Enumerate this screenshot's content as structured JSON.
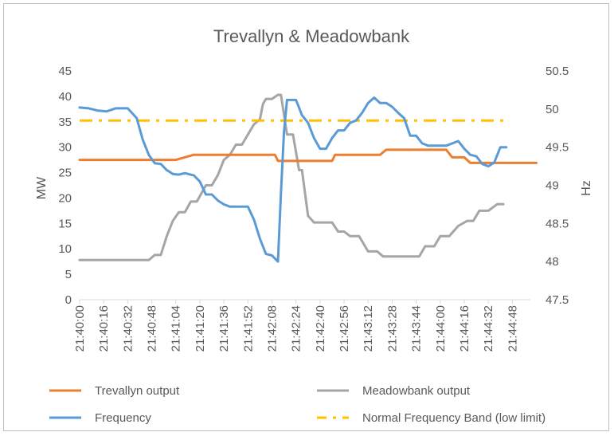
{
  "chart_data": {
    "type": "line",
    "title": "Trevallyn & Meadowbank",
    "ylabel": "MW",
    "y2label": "Hz",
    "ylim": [
      0,
      45
    ],
    "y2lim": [
      47.5,
      50.5
    ],
    "y_ticks": [
      "0",
      "5",
      "10",
      "15",
      "20",
      "25",
      "30",
      "35",
      "40",
      "45"
    ],
    "y2_ticks": [
      "47.5",
      "48",
      "48.5",
      "49",
      "49.5",
      "50",
      "50.5"
    ],
    "x_tick_labels": [
      "21:40:00",
      "21:40:16",
      "21:40:32",
      "21:40:48",
      "21:41:04",
      "21:41:20",
      "21:41:36",
      "21:41:52",
      "21:42:08",
      "21:42:24",
      "21:42:40",
      "21:42:56",
      "21:43:12",
      "21:43:28",
      "21:43:44",
      "21:44:00",
      "21:44:16",
      "21:44:32",
      "21:44:48"
    ],
    "x_seconds_per_step": 4,
    "x_count": 76,
    "grid": false,
    "legend_position": "bottom",
    "series": [
      {
        "name": "Trevallyn output",
        "axis": "left",
        "color": "#ED7D31",
        "points": [
          [
            0,
            27.5
          ],
          [
            32,
            27.5
          ],
          [
            38,
            28.5
          ],
          [
            65,
            28.5
          ],
          [
            66,
            27.3
          ],
          [
            84,
            27.3
          ],
          [
            85,
            28.5
          ],
          [
            100,
            28.5
          ],
          [
            102,
            29.5
          ],
          [
            122,
            29.5
          ],
          [
            124,
            28
          ],
          [
            128,
            28
          ],
          [
            130,
            26.9
          ],
          [
            152,
            26.9
          ]
        ]
      },
      {
        "name": "Meadowbank output",
        "axis": "left",
        "color": "#A5A5A5",
        "points": [
          [
            0,
            7.8
          ],
          [
            23,
            7.8
          ],
          [
            25,
            8.8
          ],
          [
            27,
            8.8
          ],
          [
            29,
            12.5
          ],
          [
            31,
            15.5
          ],
          [
            33,
            17.2
          ],
          [
            35,
            17.2
          ],
          [
            37,
            19.3
          ],
          [
            39,
            19.3
          ],
          [
            42,
            22.5
          ],
          [
            44,
            22.5
          ],
          [
            46,
            24.5
          ],
          [
            48,
            27.5
          ],
          [
            50,
            28.5
          ],
          [
            52,
            30.5
          ],
          [
            54,
            30.5
          ],
          [
            56,
            32.5
          ],
          [
            58,
            34.5
          ],
          [
            60,
            35.5
          ],
          [
            61,
            38.5
          ],
          [
            62,
            39.5
          ],
          [
            64,
            39.5
          ],
          [
            66,
            40.3
          ],
          [
            67,
            40.3
          ],
          [
            69,
            32.5
          ],
          [
            71,
            32.5
          ],
          [
            73,
            25.5
          ],
          [
            74,
            25.5
          ],
          [
            76,
            16.5
          ],
          [
            78,
            15.2
          ],
          [
            84,
            15.2
          ],
          [
            86,
            13.4
          ],
          [
            88,
            13.4
          ],
          [
            90,
            12.5
          ],
          [
            93,
            12.5
          ],
          [
            96,
            9.5
          ],
          [
            99,
            9.5
          ],
          [
            101,
            8.5
          ],
          [
            113,
            8.5
          ],
          [
            115,
            10.5
          ],
          [
            118,
            10.5
          ],
          [
            120,
            12.5
          ],
          [
            123,
            12.5
          ],
          [
            126,
            14.5
          ],
          [
            129,
            15.5
          ],
          [
            131,
            15.5
          ],
          [
            133,
            17.5
          ],
          [
            136,
            17.5
          ],
          [
            139,
            18.8
          ],
          [
            141,
            18.8
          ]
        ]
      },
      {
        "name": "Frequency",
        "axis": "right",
        "color": "#5B9BD5",
        "points": [
          [
            0,
            50.02
          ],
          [
            3,
            50.01
          ],
          [
            6,
            49.98
          ],
          [
            9,
            49.97
          ],
          [
            12,
            50.01
          ],
          [
            16,
            50.01
          ],
          [
            19,
            49.88
          ],
          [
            21,
            49.6
          ],
          [
            23,
            49.4
          ],
          [
            25,
            49.29
          ],
          [
            27,
            49.28
          ],
          [
            29,
            49.2
          ],
          [
            31,
            49.15
          ],
          [
            33,
            49.14
          ],
          [
            35,
            49.16
          ],
          [
            38,
            49.13
          ],
          [
            40,
            49.05
          ],
          [
            42,
            48.88
          ],
          [
            44,
            48.88
          ],
          [
            46,
            48.8
          ],
          [
            48,
            48.75
          ],
          [
            50,
            48.72
          ],
          [
            56,
            48.72
          ],
          [
            58,
            48.55
          ],
          [
            60,
            48.3
          ],
          [
            62,
            48.1
          ],
          [
            64,
            48.08
          ],
          [
            66,
            48.0
          ],
          [
            67,
            48.9
          ],
          [
            68,
            49.7
          ],
          [
            69,
            50.12
          ],
          [
            70,
            50.12
          ],
          [
            72,
            50.12
          ],
          [
            74,
            49.92
          ],
          [
            76,
            49.82
          ],
          [
            78,
            49.62
          ],
          [
            80,
            49.48
          ],
          [
            82,
            49.48
          ],
          [
            84,
            49.62
          ],
          [
            86,
            49.72
          ],
          [
            88,
            49.72
          ],
          [
            90,
            49.82
          ],
          [
            92,
            49.85
          ],
          [
            94,
            49.95
          ],
          [
            96,
            50.08
          ],
          [
            98,
            50.15
          ],
          [
            100,
            50.08
          ],
          [
            102,
            50.08
          ],
          [
            104,
            50.03
          ],
          [
            106,
            49.95
          ],
          [
            108,
            49.88
          ],
          [
            110,
            49.65
          ],
          [
            112,
            49.65
          ],
          [
            114,
            49.55
          ],
          [
            116,
            49.52
          ],
          [
            118,
            49.52
          ],
          [
            120,
            49.52
          ],
          [
            122,
            49.52
          ],
          [
            124,
            49.55
          ],
          [
            126,
            49.58
          ],
          [
            128,
            49.48
          ],
          [
            130,
            49.4
          ],
          [
            132,
            49.38
          ],
          [
            134,
            49.28
          ],
          [
            136,
            49.25
          ],
          [
            138,
            49.3
          ],
          [
            140,
            49.5
          ],
          [
            142,
            49.5
          ]
        ]
      },
      {
        "name": "Normal Frequency Band (low limit)",
        "axis": "right",
        "color": "#FFC000",
        "dashed": true,
        "points": [
          [
            0,
            49.85
          ],
          [
            142,
            49.85
          ]
        ]
      }
    ]
  }
}
